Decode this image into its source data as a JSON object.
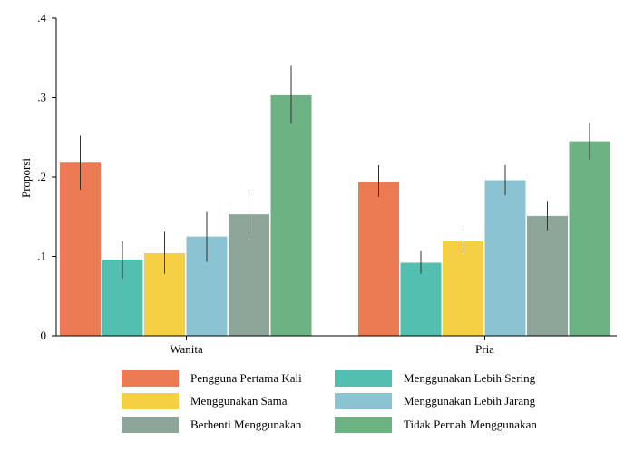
{
  "chart_data": {
    "type": "bar",
    "title": "",
    "ylabel": "Proporsi",
    "xlabel": "",
    "ylim": [
      0,
      0.4
    ],
    "yticks": [
      {
        "value": 0,
        "label": "0"
      },
      {
        "value": 0.1,
        "label": ".1"
      },
      {
        "value": 0.2,
        "label": ".2"
      },
      {
        "value": 0.3,
        "label": ".3"
      },
      {
        "value": 0.4,
        "label": ".4"
      }
    ],
    "categories": [
      "Wanita",
      "Pria"
    ],
    "grid": false,
    "legend_position": "bottom",
    "series": [
      {
        "name": "Pengguna Pertama Kali",
        "color": "#EC7A52",
        "values": [
          0.218,
          0.194
        ],
        "ci_low": [
          0.184,
          0.175
        ],
        "ci_high": [
          0.252,
          0.215
        ]
      },
      {
        "name": "Menggunakan Lebih Sering",
        "color": "#52BFB0",
        "values": [
          0.096,
          0.092
        ],
        "ci_low": [
          0.072,
          0.078
        ],
        "ci_high": [
          0.12,
          0.107
        ]
      },
      {
        "name": "Menggunakan Sama",
        "color": "#F5D044",
        "values": [
          0.104,
          0.119
        ],
        "ci_low": [
          0.078,
          0.104
        ],
        "ci_high": [
          0.131,
          0.135
        ]
      },
      {
        "name": "Menggunakan Lebih Jarang",
        "color": "#8BC3D2",
        "values": [
          0.125,
          0.196
        ],
        "ci_low": [
          0.093,
          0.177
        ],
        "ci_high": [
          0.156,
          0.215
        ]
      },
      {
        "name": "Berhenti Menggunakan",
        "color": "#8EA69A",
        "values": [
          0.153,
          0.151
        ],
        "ci_low": [
          0.123,
          0.133
        ],
        "ci_high": [
          0.184,
          0.17
        ]
      },
      {
        "name": "Tidak Pernah Menggunakan",
        "color": "#6DB283",
        "values": [
          0.303,
          0.245
        ],
        "ci_low": [
          0.267,
          0.222
        ],
        "ci_high": [
          0.34,
          0.268
        ]
      }
    ],
    "legend_order": [
      "Pengguna Pertama Kali",
      "Menggunakan Lebih Sering",
      "Menggunakan Sama",
      "Menggunakan Lebih Jarang",
      "Berhenti Menggunakan",
      "Tidak Pernah Menggunakan"
    ]
  }
}
